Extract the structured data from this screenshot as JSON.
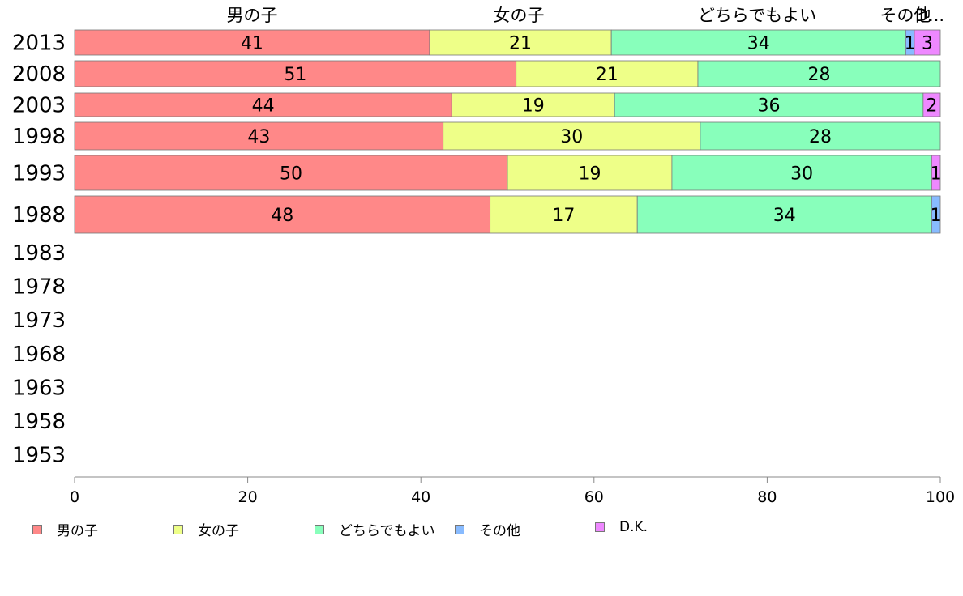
{
  "chart_data": {
    "type": "bar",
    "orientation": "horizontal",
    "stacked": true,
    "categories": [
      "2013",
      "2008",
      "2003",
      "1998",
      "1993",
      "1988",
      "1983",
      "1978",
      "1973",
      "1968",
      "1963",
      "1958",
      "1953"
    ],
    "top_labels": [
      "男の子",
      "女の子",
      "どちらでもよい",
      "その他",
      "D..."
    ],
    "series": [
      {
        "name": "男の子",
        "color": "#ff8888",
        "values": [
          41,
          51,
          44,
          43,
          50,
          48,
          null,
          null,
          null,
          null,
          null,
          null,
          null
        ]
      },
      {
        "name": "女の子",
        "color": "#eeff88",
        "values": [
          21,
          21,
          19,
          30,
          19,
          17,
          null,
          null,
          null,
          null,
          null,
          null,
          null
        ]
      },
      {
        "name": "どちらでもよい",
        "color": "#88ffbb",
        "values": [
          34,
          28,
          36,
          28,
          30,
          34,
          null,
          null,
          null,
          null,
          null,
          null,
          null
        ]
      },
      {
        "name": "その他",
        "color": "#88bbff",
        "values": [
          1,
          0,
          0,
          0,
          0,
          1,
          null,
          null,
          null,
          null,
          null,
          null,
          null
        ]
      },
      {
        "name": "D.K.",
        "color": "#ee88ff",
        "values": [
          3,
          0,
          2,
          0,
          1,
          0,
          null,
          null,
          null,
          null,
          null,
          null,
          null
        ]
      }
    ],
    "xlim": [
      0,
      100
    ],
    "xticks": [
      "0",
      "20",
      "40",
      "60",
      "80",
      "100"
    ],
    "legend_position": "bottom-left",
    "grid": false
  }
}
